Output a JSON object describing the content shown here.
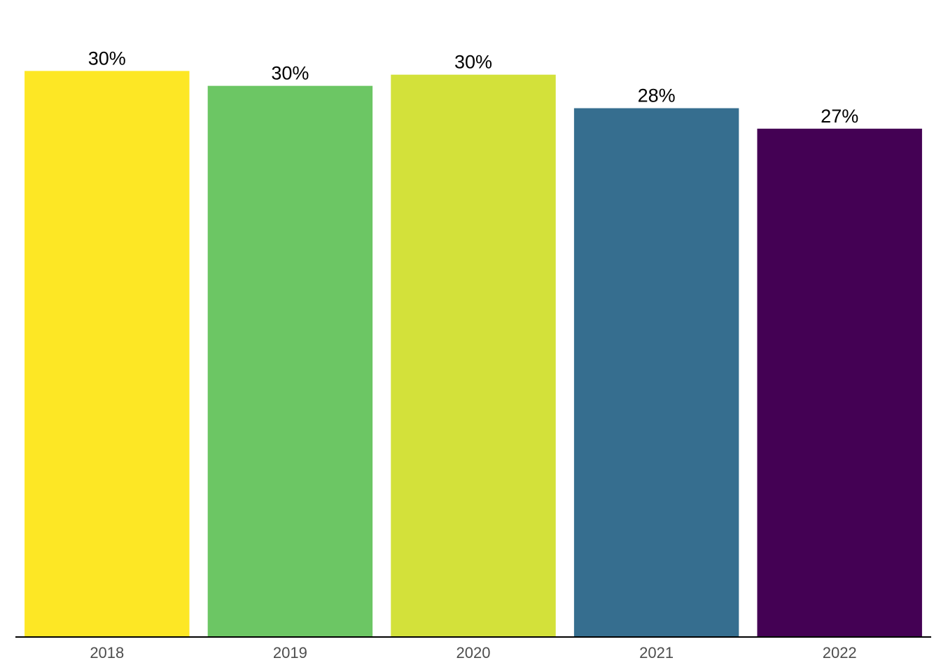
{
  "chart_data": {
    "type": "bar",
    "title": "",
    "xlabel": "",
    "ylabel": "",
    "categories": [
      "2018",
      "2019",
      "2020",
      "2021",
      "2022"
    ],
    "values": [
      30.4,
      29.6,
      30.2,
      28.4,
      27.3
    ],
    "value_labels": [
      "30%",
      "30%",
      "30%",
      "28%",
      "27%"
    ],
    "colors": [
      "#FDE725",
      "#6CC664",
      "#D3E13A",
      "#366E8F",
      "#440154"
    ],
    "ylim": [
      0,
      34
    ],
    "grid": false,
    "legend": "none"
  }
}
